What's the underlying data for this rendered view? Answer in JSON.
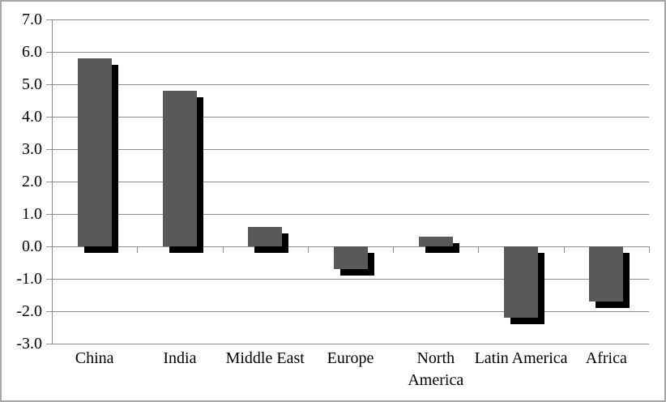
{
  "chart_data": {
    "type": "bar",
    "title": "",
    "xlabel": "",
    "ylabel": "",
    "categories": [
      "China",
      "India",
      "Middle East",
      "Europe",
      "North America",
      "Latin America",
      "Africa"
    ],
    "values": [
      5.8,
      4.8,
      0.6,
      -0.7,
      0.3,
      -2.2,
      -1.7
    ],
    "ylim": [
      -3.0,
      7.0
    ],
    "ytick_step": 1.0,
    "ytick_labels": [
      "7.0",
      "6.0",
      "5.0",
      "4.0",
      "3.0",
      "2.0",
      "1.0",
      "0.0",
      "-1.0",
      "-2.0",
      "-3.0"
    ],
    "grid": true,
    "legend": false,
    "colors": {
      "bar_fill": "#595959",
      "bar_shadow": "#000000",
      "gridline": "#8c8c8c",
      "axis": "#8c8c8c",
      "outer_border": "#a6a6a6",
      "text": "#000000",
      "background": "#ffffff"
    }
  }
}
